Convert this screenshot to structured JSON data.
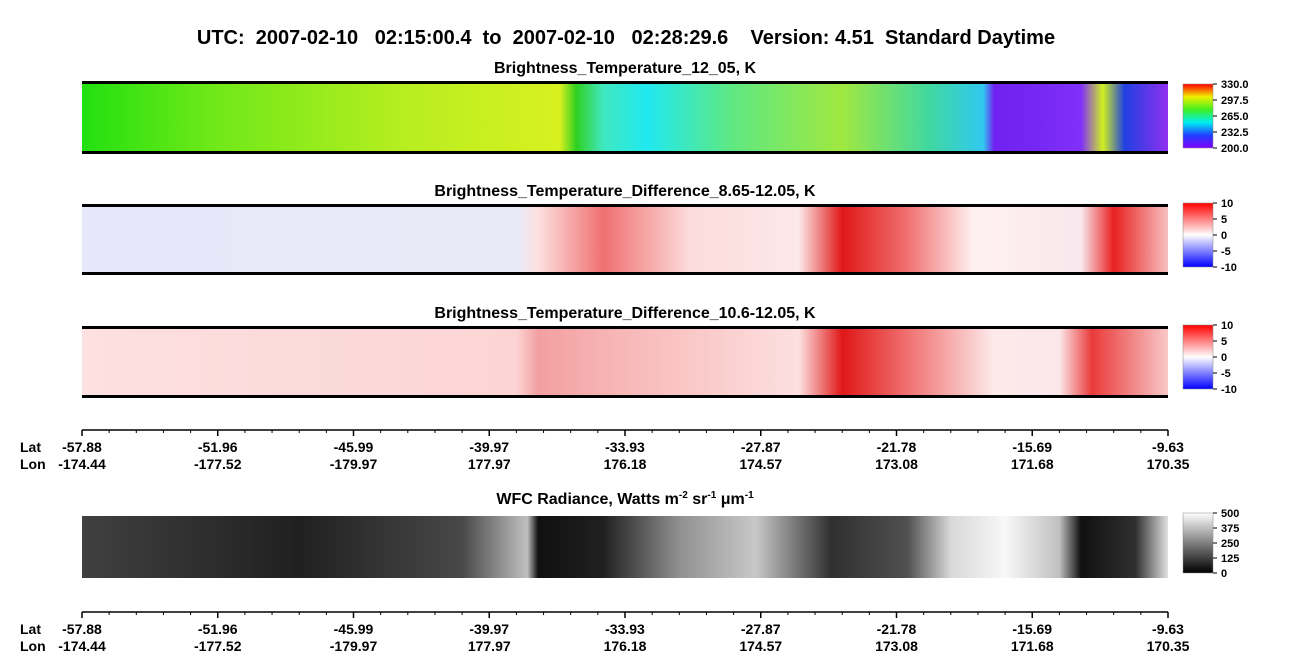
{
  "title": "UTC:  2007-02-10   02:15:00.4  to  2007-02-10   02:28:29.6    Version: 4.51  Standard Daytime",
  "chart_data": [
    {
      "type": "image",
      "title": "Brightness_Temperature_12_05, K",
      "ylim": [
        200,
        330
      ],
      "yticks": [
        {
          "value": 330,
          "label": "330.0"
        },
        {
          "value": 297.5,
          "label": "297.5"
        },
        {
          "value": 265,
          "label": "265.0"
        },
        {
          "value": 232.5,
          "label": "232.5"
        },
        {
          "value": 200,
          "label": "200.0"
        }
      ]
    },
    {
      "type": "image",
      "title": "Brightness_Temperature_Difference_8.65-12.05, K",
      "ylim": [
        -10,
        10
      ],
      "yticks": [
        10,
        5,
        0,
        -5,
        -10
      ]
    },
    {
      "type": "image",
      "title": "Brightness_Temperature_Difference_10.6-12.05, K",
      "ylim": [
        -10,
        10
      ],
      "yticks": [
        10,
        5,
        0,
        -5,
        -10
      ]
    },
    {
      "type": "image",
      "title_parts": [
        "WFC Radiance, Watts m",
        "-2",
        " sr",
        "-1",
        " μm",
        "-1"
      ],
      "ylim": [
        0,
        500
      ],
      "yticks": [
        500,
        375,
        250,
        125,
        0
      ]
    }
  ],
  "track_axis": {
    "lat_label": "Lat",
    "lon_label": "Lon",
    "lat": [
      -57.88,
      -51.96,
      -45.99,
      -39.97,
      -33.93,
      -27.87,
      -21.78,
      -15.69,
      -9.63
    ],
    "lon": [
      -174.44,
      -177.52,
      -179.97,
      177.97,
      176.18,
      174.57,
      173.08,
      171.68,
      170.35
    ]
  }
}
